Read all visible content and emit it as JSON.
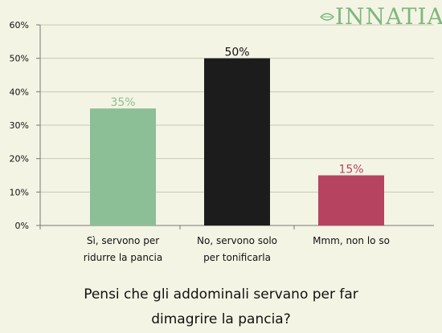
{
  "brand": {
    "name": "INNATIA",
    "color": "#7cb87c"
  },
  "chart_data": {
    "type": "bar",
    "title": "Pensi che gli addominali servano per far dimagrire la pancia?",
    "title_lines": [
      "Pensi che gli addominali servano per far",
      "dimagrire la pancia?"
    ],
    "categories": [
      "Sì, servono per ridurre la pancia",
      "No, servono solo per tonificarla",
      "Mmm, non lo so"
    ],
    "category_lines": [
      [
        "Sì, servono per",
        "ridurre la pancia"
      ],
      [
        "No, servono solo",
        "per tonificarla"
      ],
      [
        "Mmm, non lo so"
      ]
    ],
    "values": [
      35,
      50,
      15
    ],
    "value_labels": [
      "35%",
      "50%",
      "15%"
    ],
    "colors": [
      "#8cbf96",
      "#1c1c1c",
      "#b64460"
    ],
    "ylim": [
      0,
      60
    ],
    "yticks": [
      0,
      10,
      20,
      30,
      40,
      50,
      60
    ],
    "ytick_labels": [
      "0%",
      "10%",
      "20%",
      "30%",
      "40%",
      "50%",
      "60%"
    ],
    "grid": true,
    "xlabel": "",
    "ylabel": ""
  }
}
